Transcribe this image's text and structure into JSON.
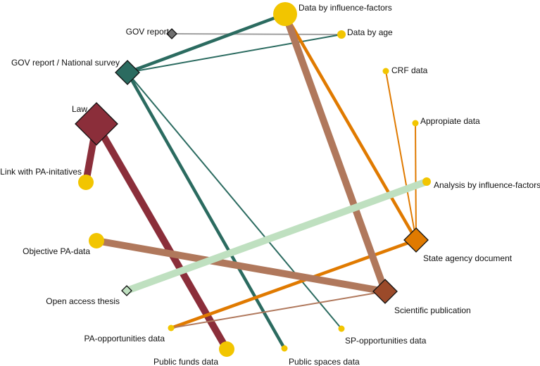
{
  "nodes": [
    {
      "id": "gov_report",
      "label": "GOV report",
      "shape": "diamond",
      "color": "#707070",
      "size": "small"
    },
    {
      "id": "gov_national",
      "label": "GOV report / National survey",
      "shape": "diamond",
      "color": "#2b6b60",
      "size": "medium"
    },
    {
      "id": "law",
      "label": "Law",
      "shape": "diamond",
      "color": "#8b2e3a",
      "size": "large"
    },
    {
      "id": "state_agency",
      "label": "State agency document",
      "shape": "diamond",
      "color": "#e07a00",
      "size": "medium"
    },
    {
      "id": "sci_pub",
      "label": "Scientific publication",
      "shape": "diamond",
      "color": "#9b4a2a",
      "size": "medium"
    },
    {
      "id": "open_thesis",
      "label": "Open access thesis",
      "shape": "diamond",
      "color": "#bfe0c0",
      "size": "small"
    },
    {
      "id": "data_influence",
      "label": "Data by influence-factors",
      "shape": "circle",
      "color": "#f2c500",
      "size": "large"
    },
    {
      "id": "data_age",
      "label": "Data by age",
      "shape": "circle",
      "color": "#f2c500",
      "size": "small"
    },
    {
      "id": "crf",
      "label": "CRF data",
      "shape": "circle",
      "color": "#f2c500",
      "size": "tiny"
    },
    {
      "id": "appropiate",
      "label": "Appropiate data",
      "shape": "circle",
      "color": "#f2c500",
      "size": "tiny"
    },
    {
      "id": "analysis_influence",
      "label": "Analysis by influence-factors",
      "shape": "circle",
      "color": "#f2c500",
      "size": "small"
    },
    {
      "id": "link_pa",
      "label": "Link with PA-initatives",
      "shape": "circle",
      "color": "#f2c500",
      "size": "medium"
    },
    {
      "id": "objective_pa",
      "label": "Objective PA-data",
      "shape": "circle",
      "color": "#f2c500",
      "size": "medium"
    },
    {
      "id": "pa_opps",
      "label": "PA-opportunities data",
      "shape": "circle",
      "color": "#f2c500",
      "size": "tiny"
    },
    {
      "id": "public_funds",
      "label": "Public funds data",
      "shape": "circle",
      "color": "#f2c500",
      "size": "medium"
    },
    {
      "id": "public_spaces",
      "label": "Public spaces data",
      "shape": "circle",
      "color": "#f2c500",
      "size": "tiny"
    },
    {
      "id": "sp_opps",
      "label": "SP-opportunities data",
      "shape": "circle",
      "color": "#f2c500",
      "size": "tiny"
    }
  ],
  "edges": [
    {
      "from": "gov_report",
      "to": "data_age",
      "color": "#a0a0a0",
      "weight": "thin"
    },
    {
      "from": "gov_national",
      "to": "data_influence",
      "color": "#2b6b60",
      "weight": "medium"
    },
    {
      "from": "gov_national",
      "to": "data_age",
      "color": "#2b6b60",
      "weight": "thin"
    },
    {
      "from": "gov_national",
      "to": "public_spaces",
      "color": "#2b6b60",
      "weight": "medium"
    },
    {
      "from": "gov_national",
      "to": "sp_opps",
      "color": "#2b6b60",
      "weight": "thin"
    },
    {
      "from": "law",
      "to": "link_pa",
      "color": "#8b2e3a",
      "weight": "thick"
    },
    {
      "from": "law",
      "to": "public_funds",
      "color": "#8b2e3a",
      "weight": "thick"
    },
    {
      "from": "state_agency",
      "to": "data_influence",
      "color": "#e07a00",
      "weight": "medium"
    },
    {
      "from": "state_agency",
      "to": "crf",
      "color": "#e07a00",
      "weight": "thin"
    },
    {
      "from": "state_agency",
      "to": "appropiate",
      "color": "#e07a00",
      "weight": "thin"
    },
    {
      "from": "state_agency",
      "to": "pa_opps",
      "color": "#e07a00",
      "weight": "medium"
    },
    {
      "from": "sci_pub",
      "to": "data_influence",
      "color": "#b0785c",
      "weight": "thick"
    },
    {
      "from": "sci_pub",
      "to": "objective_pa",
      "color": "#b0785c",
      "weight": "thick"
    },
    {
      "from": "sci_pub",
      "to": "pa_opps",
      "color": "#b0785c",
      "weight": "thin"
    },
    {
      "from": "open_thesis",
      "to": "analysis_influence",
      "color": "#bfe0c0",
      "weight": "thick"
    }
  ]
}
